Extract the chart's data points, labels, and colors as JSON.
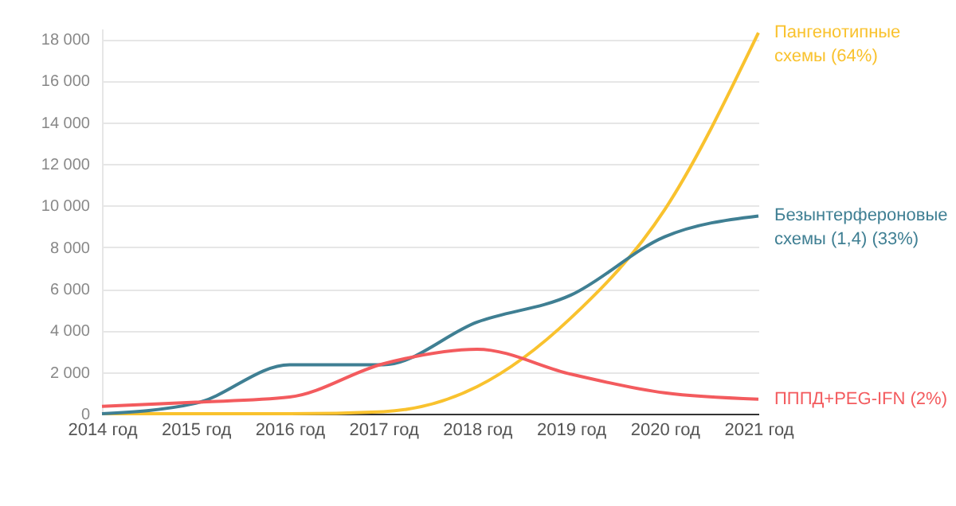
{
  "chart_data": {
    "type": "line",
    "categories": [
      "2014 год",
      "2015 год",
      "2016 год",
      "2017 год",
      "2018 год",
      "2019 год",
      "2020 год",
      "2021 год"
    ],
    "series": [
      {
        "name": "Пангенотипные\nсхемы  (64%)",
        "color": "#f9c22e",
        "values": [
          0,
          0,
          0,
          100,
          1300,
          4600,
          9800,
          18300
        ]
      },
      {
        "name": "Безынтерфероновые\nсхемы (1,4)  (33%)",
        "color": "#3f7f93",
        "values": [
          0,
          500,
          2350,
          2350,
          4400,
          5700,
          8500,
          9500
        ]
      },
      {
        "name": "ПППД+PEG-IFN (2%)",
        "color": "#f35b5e",
        "values": [
          350,
          550,
          800,
          2400,
          3100,
          1900,
          1000,
          700
        ]
      }
    ],
    "ylim": [
      0,
      18500
    ],
    "yticks": [
      {
        "value": 0,
        "label": "0"
      },
      {
        "value": 2000,
        "label": "2 000"
      },
      {
        "value": 4000,
        "label": "4 000"
      },
      {
        "value": 6000,
        "label": "6 000"
      },
      {
        "value": 8000,
        "label": "8 000"
      },
      {
        "value": 10000,
        "label": "10 000"
      },
      {
        "value": 12000,
        "label": "12 000"
      },
      {
        "value": 14000,
        "label": "14 000"
      },
      {
        "value": 16000,
        "label": "16 000"
      },
      {
        "value": 18000,
        "label": "18 000"
      }
    ],
    "grid": "y",
    "legend": false,
    "line_style": "solid"
  }
}
